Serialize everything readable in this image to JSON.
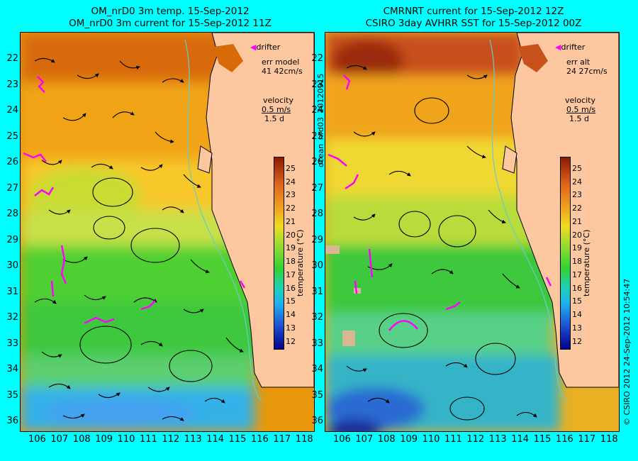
{
  "left_panel": {
    "title_line1": "OM_nrD0 3m temp. 15-Sep-2012",
    "title_line2": "OM_nrD0 3m current for 15-Sep-2012 11Z",
    "drifter_label": "drifter",
    "err_label": "err model",
    "err_value": "41 42cm/s",
    "velocity_label": "velocity",
    "velocity_scale": "0.5 m/s",
    "velocity_time": "1.5 d"
  },
  "right_panel": {
    "title_line1": "CMRNRT current for 15-Sep-2012 12Z",
    "title_line2": "CSIRO 3day AVHRR SST for 15-Sep-2012 00Z",
    "drifter_label": "drifter",
    "err_label": "err alt",
    "err_value": "24 27cm/s",
    "velocity_label": "velocity",
    "velocity_scale": "0.5 m/s",
    "velocity_time": "1.5 d"
  },
  "axes": {
    "lat_ticks": [
      "22",
      "23",
      "24",
      "25",
      "26",
      "27",
      "28",
      "29",
      "30",
      "31",
      "32",
      "33",
      "34",
      "35",
      "36"
    ],
    "lon_ticks": [
      "106",
      "107",
      "108",
      "109",
      "110",
      "111",
      "112",
      "113",
      "114",
      "115",
      "116",
      "117",
      "118"
    ]
  },
  "colorbar": {
    "label": "temperature (°C)",
    "ticks": [
      "12",
      "13",
      "14",
      "15",
      "16",
      "17",
      "18",
      "19",
      "20",
      "21",
      "22",
      "23",
      "24",
      "25"
    ],
    "range": [
      11.5,
      25.9
    ]
  },
  "side_text": {
    "run_id": "ocean_nrd03_20120915",
    "credit": "© CSIRO 2012   24-Sep-2012 10:54:47"
  },
  "colors": {
    "background": "#00ffff",
    "land": "#fdc8a0",
    "drifter": "#ff00ff",
    "coast_contour": "#66cccc"
  }
}
